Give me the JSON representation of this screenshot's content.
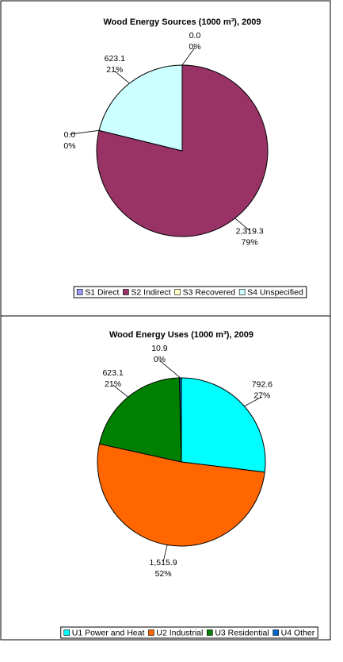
{
  "chart_data": [
    {
      "type": "pie",
      "title": "Wood Energy Sources (1000 m³), 2009",
      "categories": [
        "S1 Direct",
        "S2 Indirect",
        "S3 Recovered",
        "S4 Unspecified"
      ],
      "values": [
        0.0,
        2319.3,
        0.0,
        623.1
      ],
      "value_labels": [
        "0.0",
        "2,319.3",
        "0.0",
        "623.1"
      ],
      "percent_labels": [
        "0%",
        "79%",
        "0%",
        "21%"
      ],
      "colors": [
        "#9999ff",
        "#993366",
        "#ffffcc",
        "#ccffff"
      ],
      "legend": "bottom"
    },
    {
      "type": "pie",
      "title": "Wood Energy Uses (1000 m³), 2009",
      "categories": [
        "U1 Power and Heat",
        "U2 Industrial",
        "U3 Residential",
        "U4 Other"
      ],
      "values": [
        792.6,
        1515.9,
        623.1,
        10.9
      ],
      "value_labels": [
        "792.6",
        "1,515.9",
        "623.1",
        "10.9"
      ],
      "percent_labels": [
        "27%",
        "52%",
        "21%",
        "0%"
      ],
      "colors": [
        "#00ffff",
        "#ff6600",
        "#008000",
        "#0066cc"
      ],
      "legend": "bottom"
    }
  ]
}
